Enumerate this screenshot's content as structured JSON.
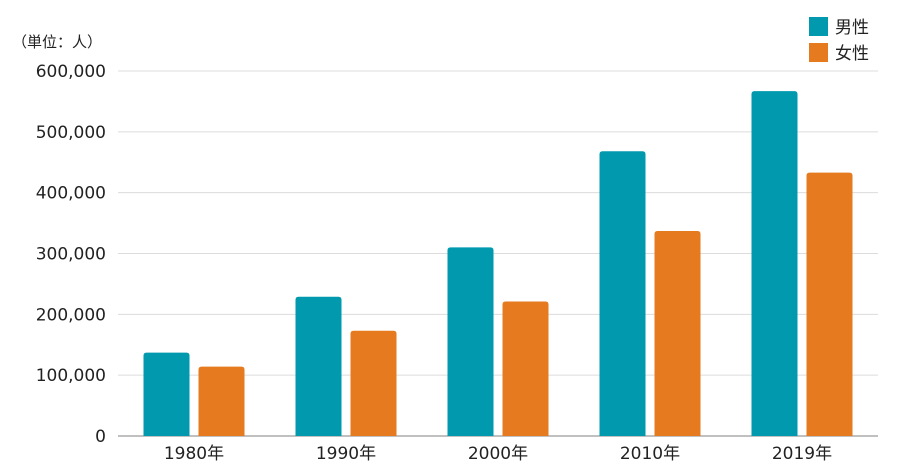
{
  "chart_data": {
    "type": "bar",
    "unit_label": "（単位：人）",
    "categories": [
      "1980年",
      "1990年",
      "2000年",
      "2010年",
      "2019年"
    ],
    "series": [
      {
        "name": "男性",
        "color": "#0099ad",
        "values": [
          137000,
          229000,
          310000,
          468000,
          567000
        ]
      },
      {
        "name": "女性",
        "color": "#e57a1e",
        "values": [
          114000,
          173000,
          221000,
          337000,
          433000
        ]
      }
    ],
    "ylim": [
      0,
      600000
    ],
    "yticks": [
      0,
      100000,
      200000,
      300000,
      400000,
      500000,
      600000
    ],
    "ytick_labels": [
      "0",
      "100,000",
      "200,000",
      "300,000",
      "400,000",
      "500,000",
      "600,000"
    ],
    "grid": true,
    "legend_position": "top-right"
  }
}
